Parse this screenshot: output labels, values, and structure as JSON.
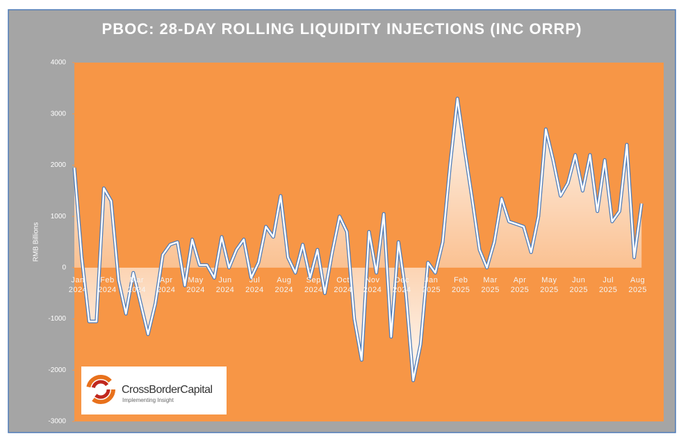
{
  "chart_data": {
    "type": "area-line",
    "title": "PBOC: 28-DAY ROLLING  LIQUIDITY INJECTIONS (INC ORRP)",
    "y_label": "RMB Billions",
    "categories": [
      "Jan 2024",
      null,
      null,
      null,
      "Feb 2024",
      null,
      null,
      null,
      "Mar 2024",
      null,
      null,
      null,
      "Apr 2024",
      null,
      null,
      null,
      "May 2024",
      null,
      null,
      null,
      "Jun 2024",
      null,
      null,
      null,
      "Jul 2024",
      null,
      null,
      null,
      "Aug 2024",
      null,
      null,
      null,
      "Sep 2024",
      null,
      null,
      null,
      "Oct 2024",
      null,
      null,
      null,
      "Nov 2024",
      null,
      null,
      null,
      "Dec 2024",
      null,
      null,
      null,
      "Jan 2025",
      null,
      null,
      null,
      "Feb 2025",
      null,
      null,
      null,
      "Mar 2025",
      null,
      null,
      null,
      "Apr 2025",
      null,
      null,
      null,
      "May 2025",
      null,
      null,
      null,
      "Jun 2025",
      null,
      null,
      null,
      "Jul 2025",
      null,
      null,
      null,
      "Aug 2025",
      null
    ],
    "values": [
      1950,
      200,
      -1050,
      -1050,
      1550,
      1300,
      -250,
      -900,
      -100,
      -700,
      -1300,
      -700,
      250,
      450,
      500,
      -350,
      550,
      50,
      50,
      -200,
      600,
      0,
      350,
      550,
      -200,
      100,
      800,
      600,
      1400,
      200,
      -100,
      450,
      -200,
      350,
      -500,
      300,
      1000,
      700,
      -1000,
      -1800,
      700,
      -100,
      1050,
      -1350,
      500,
      -500,
      -2200,
      -1500,
      100,
      -100,
      500,
      2000,
      3300,
      2300,
      1350,
      350,
      0,
      500,
      1350,
      900,
      850,
      800,
      300,
      1000,
      2700,
      2100,
      1400,
      1650,
      2200,
      1500,
      2200,
      1100,
      2100,
      900,
      1100,
      2400,
      200,
      1250
    ],
    "color": "#ffffff",
    "ylim": [
      -3000,
      4000
    ],
    "yticks": [
      -3000,
      -2000,
      -1000,
      0,
      1000,
      2000,
      3000,
      4000
    ],
    "grid": false
  },
  "logo": {
    "name": "CrossBorderCapital",
    "tagline": "Implementing Insight"
  }
}
